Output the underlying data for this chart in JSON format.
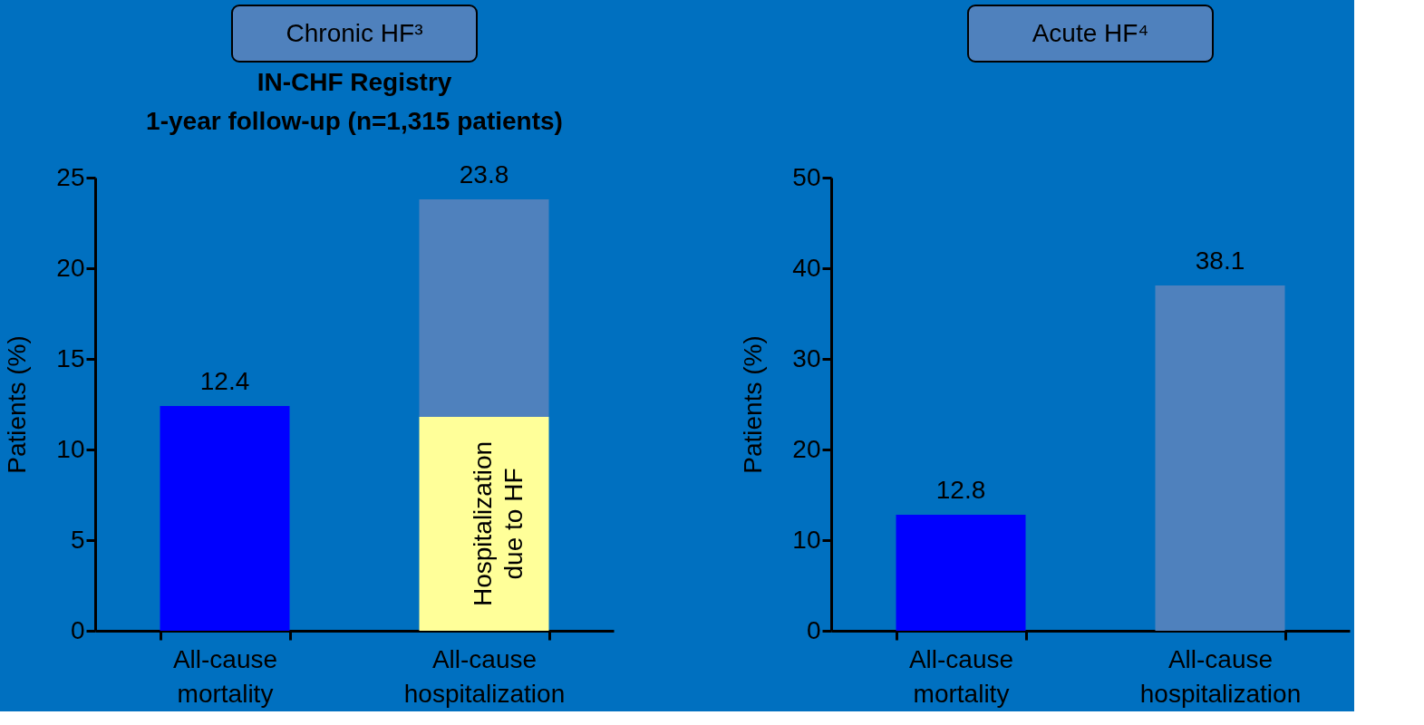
{
  "chart_data": [
    {
      "type": "bar",
      "title": "Chronic HF³",
      "subtitle": [
        "IN-CHF Registry",
        "1-year follow-up (n=1,315 patients)"
      ],
      "ylabel": "Patients (%)",
      "categories": [
        "All-cause mortality",
        "All-cause hospitalization"
      ],
      "stacked": true,
      "series": [
        {
          "name": "Hospitalization due to HF",
          "color": "#ffff99",
          "values": [
            null,
            11.8
          ]
        },
        {
          "colors": [
            "#0000ff",
            "#4f81bd"
          ],
          "values": [
            12.4,
            12.0
          ]
        }
      ],
      "totals": [
        "12.4",
        "23.8"
      ],
      "ylim": [
        0,
        25
      ],
      "yticks": [
        0,
        5,
        10,
        15,
        20,
        25
      ],
      "grid": false
    },
    {
      "type": "bar",
      "title": "Acute HF⁴",
      "ylabel": "Patients (%)",
      "categories": [
        "All-cause mortality",
        "All-cause hospitalization"
      ],
      "values": [
        12.8,
        38.1
      ],
      "colors": [
        "#0000ff",
        "#4f81bd"
      ],
      "data_labels": true,
      "ylim": [
        0,
        50
      ],
      "yticks": [
        0,
        10,
        20,
        30,
        40,
        50
      ],
      "grid": false
    }
  ]
}
